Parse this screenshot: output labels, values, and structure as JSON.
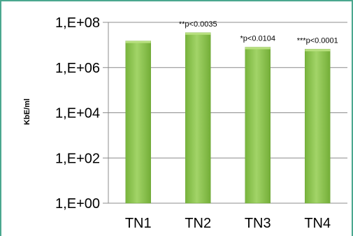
{
  "chart_data": {
    "type": "bar",
    "title": "",
    "xlabel": "",
    "ylabel": "KbE/ml",
    "y_scale": "log",
    "ylim": [
      1,
      100000000
    ],
    "y_ticks": [
      1,
      100,
      10000,
      1000000,
      100000000
    ],
    "y_tick_labels": [
      "1,E+00",
      "1,E+02",
      "1,E+04",
      "1,E+06",
      "1,E+08"
    ],
    "grid": true,
    "categories": [
      "TN1",
      "TN2",
      "TN3",
      "TN4"
    ],
    "values": [
      15000000,
      35000000,
      8000000,
      6500000
    ],
    "annotations": [
      "",
      "**p<0.0035",
      "*p<0.0104",
      "***p<0.0001"
    ],
    "colors": {
      "bar": "#8fc84f",
      "bar_edge": "#6ea63a",
      "frame": "#4aa88f",
      "grid": "#8c8c8c"
    }
  }
}
